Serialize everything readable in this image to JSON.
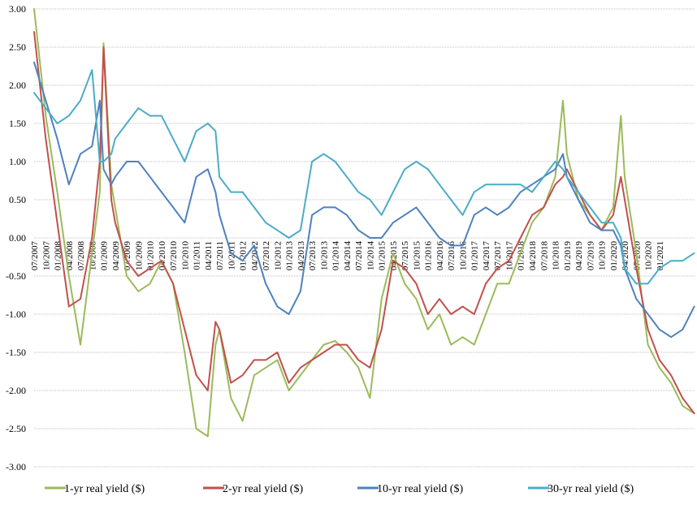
{
  "chart_data": {
    "type": "line",
    "title": "",
    "xlabel": "",
    "ylabel": "",
    "ylim": [
      -3.0,
      3.0
    ],
    "yticks": [
      "3.00",
      "2.50",
      "2.00",
      "1.50",
      "1.00",
      "0.50",
      "0.00",
      "-0.50",
      "-1.00",
      "-1.50",
      "-2.00",
      "-2.50",
      "-3.00"
    ],
    "xlim": [
      "2007-07",
      "2021-10"
    ],
    "xticks": [
      "07/2007",
      "10/2007",
      "01/2008",
      "04/2008",
      "07/2008",
      "10/2008",
      "01/2009",
      "04/2009",
      "07/2009",
      "10/2009",
      "01/2010",
      "04/2010",
      "07/2010",
      "10/2010",
      "01/2011",
      "04/2011",
      "07/2011",
      "10/2011",
      "01/2012",
      "04/2012",
      "07/2012",
      "10/2012",
      "01/2013",
      "04/2013",
      "07/2013",
      "10/2013",
      "01/2014",
      "04/2014",
      "07/2014",
      "10/2014",
      "01/2015",
      "04/2015",
      "07/2015",
      "10/2015",
      "01/2016",
      "04/2016",
      "07/2016",
      "10/2016",
      "01/2017",
      "04/2017",
      "07/2017",
      "10/2017",
      "01/2018",
      "04/2018",
      "07/2018",
      "10/2018",
      "01/2019",
      "04/2019",
      "07/2019",
      "10/2019",
      "01/2020",
      "04/2020",
      "07/2020",
      "10/2020",
      "01/2021"
    ],
    "grid": "horizontal",
    "legend_position": "bottom",
    "x": [
      "2007-07",
      "2007-10",
      "2008-01",
      "2008-04",
      "2008-07",
      "2008-10",
      "2008-12",
      "2009-01",
      "2009-03",
      "2009-04",
      "2009-07",
      "2009-10",
      "2010-01",
      "2010-04",
      "2010-07",
      "2010-10",
      "2011-01",
      "2011-04",
      "2011-06",
      "2011-07",
      "2011-10",
      "2012-01",
      "2012-04",
      "2012-07",
      "2012-10",
      "2013-01",
      "2013-04",
      "2013-07",
      "2013-10",
      "2014-01",
      "2014-04",
      "2014-07",
      "2014-10",
      "2015-01",
      "2015-04",
      "2015-07",
      "2015-10",
      "2016-01",
      "2016-04",
      "2016-07",
      "2016-10",
      "2017-01",
      "2017-04",
      "2017-07",
      "2017-10",
      "2018-01",
      "2018-04",
      "2018-07",
      "2018-10",
      "2018-12",
      "2019-01",
      "2019-04",
      "2019-07",
      "2019-10",
      "2020-01",
      "2020-03",
      "2020-04",
      "2020-07",
      "2020-10",
      "2021-01",
      "2021-04",
      "2021-07",
      "2021-10"
    ],
    "series": [
      {
        "name": "1-yr real yield ($)",
        "color": "#9bbb59",
        "values": [
          3.0,
          1.6,
          0.6,
          -0.5,
          -1.4,
          -0.2,
          0.6,
          2.55,
          0.7,
          0.4,
          -0.5,
          -0.7,
          -0.6,
          -0.3,
          -0.6,
          -1.5,
          -2.5,
          -2.6,
          -1.4,
          -1.2,
          -2.1,
          -2.4,
          -1.8,
          -1.7,
          -1.6,
          -2.0,
          -1.8,
          -1.6,
          -1.4,
          -1.35,
          -1.5,
          -1.7,
          -2.1,
          -0.8,
          -0.2,
          -0.6,
          -0.8,
          -1.2,
          -1.0,
          -1.4,
          -1.3,
          -1.4,
          -1.0,
          -0.6,
          -0.6,
          -0.2,
          0.2,
          0.4,
          0.8,
          1.8,
          1.1,
          0.5,
          0.3,
          0.1,
          0.4,
          1.6,
          0.8,
          -0.2,
          -1.4,
          -1.7,
          -1.9,
          -2.2,
          -2.3
        ]
      },
      {
        "name": "2-yr real yield ($)",
        "color": "#c0504d",
        "values": [
          2.7,
          1.3,
          0.2,
          -0.9,
          -0.8,
          0.0,
          1.0,
          2.5,
          0.5,
          0.2,
          -0.3,
          -0.5,
          -0.4,
          -0.3,
          -0.6,
          -1.2,
          -1.8,
          -2.0,
          -1.1,
          -1.2,
          -1.9,
          -1.8,
          -1.6,
          -1.6,
          -1.5,
          -1.9,
          -1.7,
          -1.6,
          -1.5,
          -1.4,
          -1.4,
          -1.6,
          -1.7,
          -1.2,
          -0.3,
          -0.4,
          -0.6,
          -1.0,
          -0.8,
          -1.0,
          -0.9,
          -1.0,
          -0.6,
          -0.4,
          -0.3,
          0.0,
          0.3,
          0.4,
          0.7,
          0.8,
          0.9,
          0.6,
          0.3,
          0.1,
          0.3,
          0.8,
          0.5,
          -0.4,
          -1.2,
          -1.6,
          -1.8,
          -2.1,
          -2.3
        ]
      },
      {
        "name": "10-yr real yield ($)",
        "color": "#4f81bd",
        "values": [
          2.3,
          1.8,
          1.3,
          0.7,
          1.1,
          1.2,
          1.8,
          0.9,
          0.7,
          0.8,
          1.0,
          1.0,
          0.8,
          0.6,
          0.4,
          0.2,
          0.8,
          0.9,
          0.6,
          0.3,
          -0.2,
          -0.3,
          -0.1,
          -0.6,
          -0.9,
          -1.0,
          -0.7,
          0.3,
          0.4,
          0.4,
          0.3,
          0.1,
          0.0,
          0.0,
          0.2,
          0.3,
          0.4,
          0.2,
          0.0,
          -0.1,
          -0.1,
          0.3,
          0.4,
          0.3,
          0.4,
          0.6,
          0.7,
          0.8,
          0.9,
          1.1,
          0.8,
          0.5,
          0.2,
          0.1,
          0.1,
          -0.1,
          -0.4,
          -0.8,
          -1.0,
          -1.2,
          -1.3,
          -1.2,
          -0.9
        ]
      },
      {
        "name": "30-yr real yield ($)",
        "color": "#4bacc6",
        "values": [
          1.9,
          1.7,
          1.5,
          1.6,
          1.8,
          2.2,
          1.0,
          1.0,
          1.1,
          1.3,
          1.5,
          1.7,
          1.6,
          1.6,
          1.3,
          1.0,
          1.4,
          1.5,
          1.4,
          0.8,
          0.6,
          0.6,
          0.4,
          0.2,
          0.1,
          0.0,
          0.1,
          1.0,
          1.1,
          1.0,
          0.8,
          0.6,
          0.5,
          0.3,
          0.6,
          0.9,
          1.0,
          0.9,
          0.7,
          0.5,
          0.3,
          0.6,
          0.7,
          0.7,
          0.7,
          0.7,
          0.6,
          0.8,
          1.0,
          0.9,
          0.8,
          0.6,
          0.4,
          0.2,
          0.2,
          0.0,
          -0.4,
          -0.6,
          -0.6,
          -0.4,
          -0.3,
          -0.3,
          -0.2
        ]
      }
    ]
  }
}
